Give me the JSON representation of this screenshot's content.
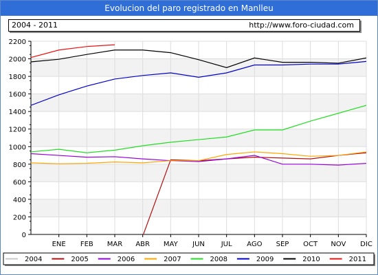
{
  "header": {
    "title": "Evolucion del paro registrado en Manlleu",
    "period": "2004 - 2011",
    "url": "http://www.foro-ciudad.com"
  },
  "chart_data": {
    "type": "line",
    "categories": [
      "ENE",
      "FEB",
      "MAR",
      "ABR",
      "MAY",
      "JUN",
      "JUL",
      "AGO",
      "SEP",
      "OCT",
      "NOV",
      "DIC"
    ],
    "ylim": [
      0,
      2200
    ],
    "yticks": [
      0,
      200,
      400,
      600,
      800,
      1000,
      1200,
      1400,
      1600,
      1800,
      2000,
      2200
    ],
    "series": [
      {
        "name": "2004",
        "color": "#c8c8c8",
        "values": [
          null,
          null,
          null,
          null,
          null,
          null,
          null,
          null,
          null,
          null,
          null,
          null
        ]
      },
      {
        "name": "2005",
        "color": "#b01010",
        "values": [
          null,
          null,
          null,
          null,
          850,
          840,
          860,
          880,
          870,
          860,
          900,
          930
        ]
      },
      {
        "name": "2006",
        "color": "#9b00d8",
        "values": [
          900,
          880,
          885,
          860,
          840,
          830,
          860,
          900,
          800,
          800,
          790,
          810
        ]
      },
      {
        "name": "2007",
        "color": "#ffa500",
        "values": [
          805,
          810,
          825,
          815,
          840,
          840,
          910,
          940,
          920,
          890,
          900,
          940
        ]
      },
      {
        "name": "2008",
        "color": "#22dd22",
        "values": [
          970,
          930,
          960,
          1010,
          1050,
          1080,
          1110,
          1190,
          1190,
          1290,
          1380,
          1470
        ]
      },
      {
        "name": "2009",
        "color": "#0000cc",
        "values": [
          1590,
          1690,
          1770,
          1810,
          1840,
          1790,
          1840,
          1930,
          1930,
          1940,
          1940,
          1970
        ]
      },
      {
        "name": "2010",
        "color": "#000000",
        "values": [
          1995,
          2050,
          2100,
          2100,
          2070,
          1990,
          1900,
          2010,
          1960,
          1960,
          1950,
          2010
        ]
      },
      {
        "name": "2011",
        "color": "#ee1111",
        "values": [
          2100,
          2140,
          2160,
          null,
          null,
          null,
          null,
          null,
          null,
          null,
          null,
          null
        ]
      }
    ],
    "legend_position": "bottom",
    "grid": true
  }
}
